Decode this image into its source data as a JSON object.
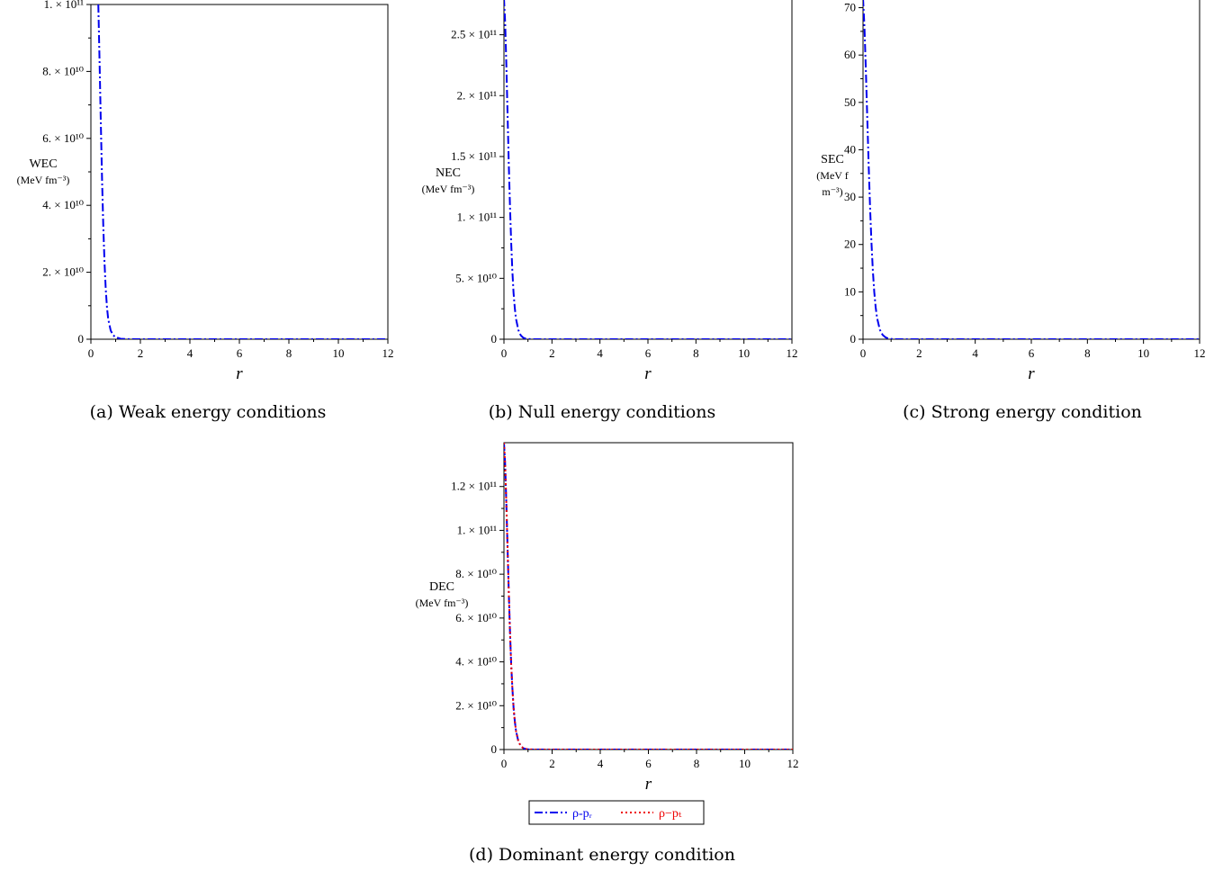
{
  "figure": {
    "captions": {
      "a": "(a) Weak energy conditions",
      "b": "(b) Null energy conditions",
      "c": "(c) Strong energy condition",
      "d": "(d) Dominant energy condition"
    }
  },
  "chart_data": [
    {
      "id": "a",
      "type": "line",
      "xlabel": "r",
      "ylabel": [
        "WEC",
        "(MeV fm⁻³)"
      ],
      "xlim": [
        0,
        12
      ],
      "ylim": [
        0,
        100000000000.0
      ],
      "xticks": [
        0,
        2,
        4,
        6,
        8,
        10,
        12
      ],
      "yticks": [
        {
          "value": 0,
          "label": "0"
        },
        {
          "value": 20000000000.0,
          "label": "2. × 10¹⁰"
        },
        {
          "value": 40000000000.0,
          "label": "4. × 10¹⁰"
        },
        {
          "value": 60000000000.0,
          "label": "6. × 10¹⁰"
        },
        {
          "value": 80000000000.0,
          "label": "8. × 10¹⁰"
        },
        {
          "value": 100000000000.0,
          "label": "1. × 10¹¹"
        }
      ],
      "grid": false,
      "series": [
        {
          "color": "#0000ee",
          "dash": "dashdot",
          "x": [
            0.3,
            0.35,
            0.4,
            0.45,
            0.5,
            0.55,
            0.6,
            0.65,
            0.7,
            0.8,
            0.9,
            1.0,
            1.2,
            1.5,
            2,
            3,
            4,
            5,
            6,
            7,
            8,
            9,
            10,
            11,
            12
          ],
          "y": [
            100000000000.0,
            83000000000.0,
            65000000000.0,
            48000000000.0,
            34000000000.0,
            23000000000.0,
            15000000000.0,
            9500000000.0,
            6000000000.0,
            2600000000.0,
            1200000000.0,
            600000000.0,
            150000000.0,
            30000000.0,
            0,
            0,
            0,
            0,
            0,
            0,
            0,
            0,
            0,
            0,
            0
          ]
        }
      ]
    },
    {
      "id": "b",
      "type": "line",
      "xlabel": "r",
      "ylabel": [
        "NEC",
        "(MeV fm⁻³)"
      ],
      "xlim": [
        0,
        12
      ],
      "ylim": [
        0,
        280000000000.0
      ],
      "xticks": [
        0,
        2,
        4,
        6,
        8,
        10,
        12
      ],
      "yticks": [
        {
          "value": 0,
          "label": "0"
        },
        {
          "value": 50000000000.0,
          "label": "5. × 10¹⁰"
        },
        {
          "value": 100000000000.0,
          "label": "1. × 10¹¹"
        },
        {
          "value": 150000000000.0,
          "label": "1.5 × 10¹¹"
        },
        {
          "value": 200000000000.0,
          "label": "2. × 10¹¹"
        },
        {
          "value": 250000000000.0,
          "label": "2.5 × 10¹¹"
        }
      ],
      "grid": false,
      "series": [
        {
          "color": "#0000ee",
          "dash": "dashdot",
          "x": [
            0.0,
            0.05,
            0.1,
            0.15,
            0.2,
            0.25,
            0.3,
            0.35,
            0.4,
            0.45,
            0.5,
            0.6,
            0.7,
            0.8,
            0.9,
            1.0,
            1.2,
            1.5,
            2,
            3,
            4,
            5,
            6,
            7,
            8,
            9,
            10,
            11,
            12
          ],
          "y": [
            280000000000.0,
            260000000000.0,
            225000000000.0,
            185000000000.0,
            145000000000.0,
            110000000000.0,
            80000000000.0,
            56000000000.0,
            38000000000.0,
            26000000000.0,
            17000000000.0,
            7500000000.0,
            3200000000.0,
            1300000000.0,
            500000000.0,
            200000000.0,
            30000000.0,
            0,
            0,
            0,
            0,
            0,
            0,
            0,
            0,
            0,
            0,
            0,
            0
          ]
        }
      ]
    },
    {
      "id": "c",
      "type": "line",
      "xlabel": "r",
      "ylabel": [
        "SEC",
        "(MeV f",
        "m⁻³)"
      ],
      "xlim": [
        0,
        12
      ],
      "ylim": [
        0,
        72
      ],
      "xticks": [
        0,
        2,
        4,
        6,
        8,
        10,
        12
      ],
      "yticks": [
        {
          "value": 0,
          "label": "0"
        },
        {
          "value": 10,
          "label": "10"
        },
        {
          "value": 20,
          "label": "20"
        },
        {
          "value": 30,
          "label": "30"
        },
        {
          "value": 40,
          "label": "40"
        },
        {
          "value": 50,
          "label": "50"
        },
        {
          "value": 60,
          "label": "60"
        },
        {
          "value": 70,
          "label": "70"
        }
      ],
      "grid": false,
      "series": [
        {
          "color": "#0000ee",
          "dash": "dashdot",
          "x": [
            0.0,
            0.05,
            0.1,
            0.15,
            0.2,
            0.25,
            0.3,
            0.35,
            0.4,
            0.45,
            0.5,
            0.6,
            0.7,
            0.8,
            0.9,
            1.0,
            1.2,
            1.5,
            2,
            3,
            4,
            5,
            6,
            7,
            8,
            9,
            10,
            11,
            12
          ],
          "y": [
            72,
            66,
            57,
            47,
            37,
            28,
            20.5,
            14.5,
            10,
            6.8,
            4.5,
            2.0,
            0.9,
            0.4,
            0.15,
            0.06,
            0.01,
            0,
            0,
            0,
            0,
            0,
            0,
            0,
            0,
            0,
            0,
            0,
            0
          ]
        }
      ]
    },
    {
      "id": "d",
      "type": "line",
      "xlabel": "r",
      "ylabel": [
        "DEC",
        "(MeV fm⁻³)"
      ],
      "xlim": [
        0,
        12
      ],
      "ylim": [
        0,
        140000000000.0
      ],
      "xticks": [
        0,
        2,
        4,
        6,
        8,
        10,
        12
      ],
      "yticks": [
        {
          "value": 0,
          "label": "0"
        },
        {
          "value": 20000000000.0,
          "label": "2. × 10¹⁰"
        },
        {
          "value": 40000000000.0,
          "label": "4. × 10¹⁰"
        },
        {
          "value": 60000000000.0,
          "label": "6. × 10¹⁰"
        },
        {
          "value": 80000000000.0,
          "label": "8. × 10¹⁰"
        },
        {
          "value": 100000000000.0,
          "label": "1. × 10¹¹"
        },
        {
          "value": 120000000000.0,
          "label": "1.2 × 10¹¹"
        }
      ],
      "grid": false,
      "legend": {
        "position": "bottom",
        "entries": [
          {
            "label": "ρ-pᵣ",
            "color": "#0000ee",
            "dash": "dashdot"
          },
          {
            "label": "ρ−pₜ",
            "color": "#ee0000",
            "dash": "dotted"
          }
        ]
      },
      "series": [
        {
          "color": "#0000ee",
          "dash": "dashdot",
          "x": [
            0.0,
            0.05,
            0.1,
            0.15,
            0.2,
            0.25,
            0.3,
            0.35,
            0.4,
            0.45,
            0.5,
            0.6,
            0.7,
            0.8,
            0.9,
            1.0,
            1.2,
            1.5,
            2,
            3,
            4,
            5,
            6,
            7,
            8,
            9,
            10,
            11,
            12
          ],
          "y": [
            140000000000.0,
            130000000000.0,
            112000000000.0,
            92000000000.0,
            72000000000.0,
            54000000000.0,
            39000000000.0,
            28000000000.0,
            19000000000.0,
            13000000000.0,
            8500000000.0,
            3700000000.0,
            1600000000.0,
            650000000.0,
            250000000.0,
            100000000.0,
            15000000.0,
            0,
            0,
            0,
            0,
            0,
            0,
            0,
            0,
            0,
            0,
            0,
            0
          ]
        },
        {
          "color": "#ee0000",
          "dash": "dotted",
          "x": [
            0.0,
            0.05,
            0.1,
            0.15,
            0.2,
            0.25,
            0.3,
            0.35,
            0.4,
            0.45,
            0.5,
            0.6,
            0.7,
            0.8,
            0.9,
            1.0,
            1.2,
            1.5,
            2,
            3,
            4,
            5,
            6,
            7,
            8,
            9,
            10,
            11,
            12
          ],
          "y": [
            140000000000.0,
            130000000000.0,
            112000000000.0,
            92000000000.0,
            72000000000.0,
            54000000000.0,
            39000000000.0,
            28000000000.0,
            19000000000.0,
            13000000000.0,
            8500000000.0,
            3700000000.0,
            1600000000.0,
            650000000.0,
            250000000.0,
            100000000.0,
            15000000.0,
            0,
            0,
            0,
            0,
            0,
            0,
            0,
            0,
            0,
            0,
            0,
            0
          ]
        }
      ]
    }
  ]
}
